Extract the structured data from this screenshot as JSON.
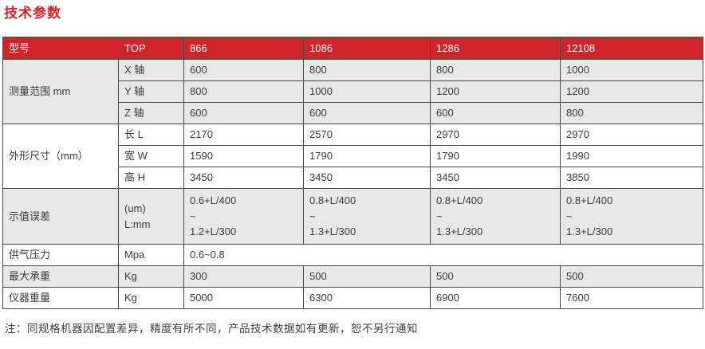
{
  "page": {
    "title": "技术参数",
    "note": "注：同规格机器因配置差异，精度有所不同，产品技术数据如有更新，恕不另行通知"
  },
  "colors": {
    "header_red": "#d0232a",
    "title_red": "#da2423",
    "band_gray": "#e8e8e8",
    "row_white": "#ffffff",
    "border": "#4a4a4a",
    "text": "#3b3b3b",
    "header_text": "#ffffff"
  },
  "table": {
    "header": {
      "model_label": "型号",
      "top_label": "TOP",
      "models": [
        "866",
        "1086",
        "1286",
        "12108"
      ]
    },
    "rows": {
      "range": {
        "label": "测量范围 mm",
        "x": {
          "label": "X 轴",
          "values": [
            "600",
            "800",
            "800",
            "1000"
          ]
        },
        "y": {
          "label": "Y 轴",
          "values": [
            "800",
            "1000",
            "1200",
            "1200"
          ]
        },
        "z": {
          "label": "Z 轴",
          "values": [
            "600",
            "600",
            "600",
            "800"
          ]
        }
      },
      "dims": {
        "label": "外形尺寸（mm）",
        "l": {
          "label": "长 L",
          "values": [
            "2170",
            "2570",
            "2970",
            "2970"
          ]
        },
        "w": {
          "label": "宽 W",
          "values": [
            "1590",
            "1790",
            "1790",
            "1990"
          ]
        },
        "h": {
          "label": "高 H",
          "values": [
            "3450",
            "3450",
            "3450",
            "3850"
          ]
        }
      },
      "error": {
        "label": "示值误差",
        "unit": "(um)\nL:mm",
        "values": [
          "0.6+L/400\n~\n1.2+L/300",
          "0.8+L/400\n~\n1.3+L/300",
          "0.8+L/400\n~\n1.3+L/300",
          "0.8+L/400\n~\n1.3+L/300"
        ]
      },
      "air": {
        "label": "供气压力",
        "unit": "Mpa",
        "value": "0.6~0.8"
      },
      "load": {
        "label": "最大承重",
        "unit": "Kg",
        "values": [
          "300",
          "500",
          "500",
          "500"
        ]
      },
      "weight": {
        "label": "仪器重量",
        "unit": "Kg",
        "values": [
          "5000",
          "6300",
          "6900",
          "7600"
        ]
      }
    }
  }
}
